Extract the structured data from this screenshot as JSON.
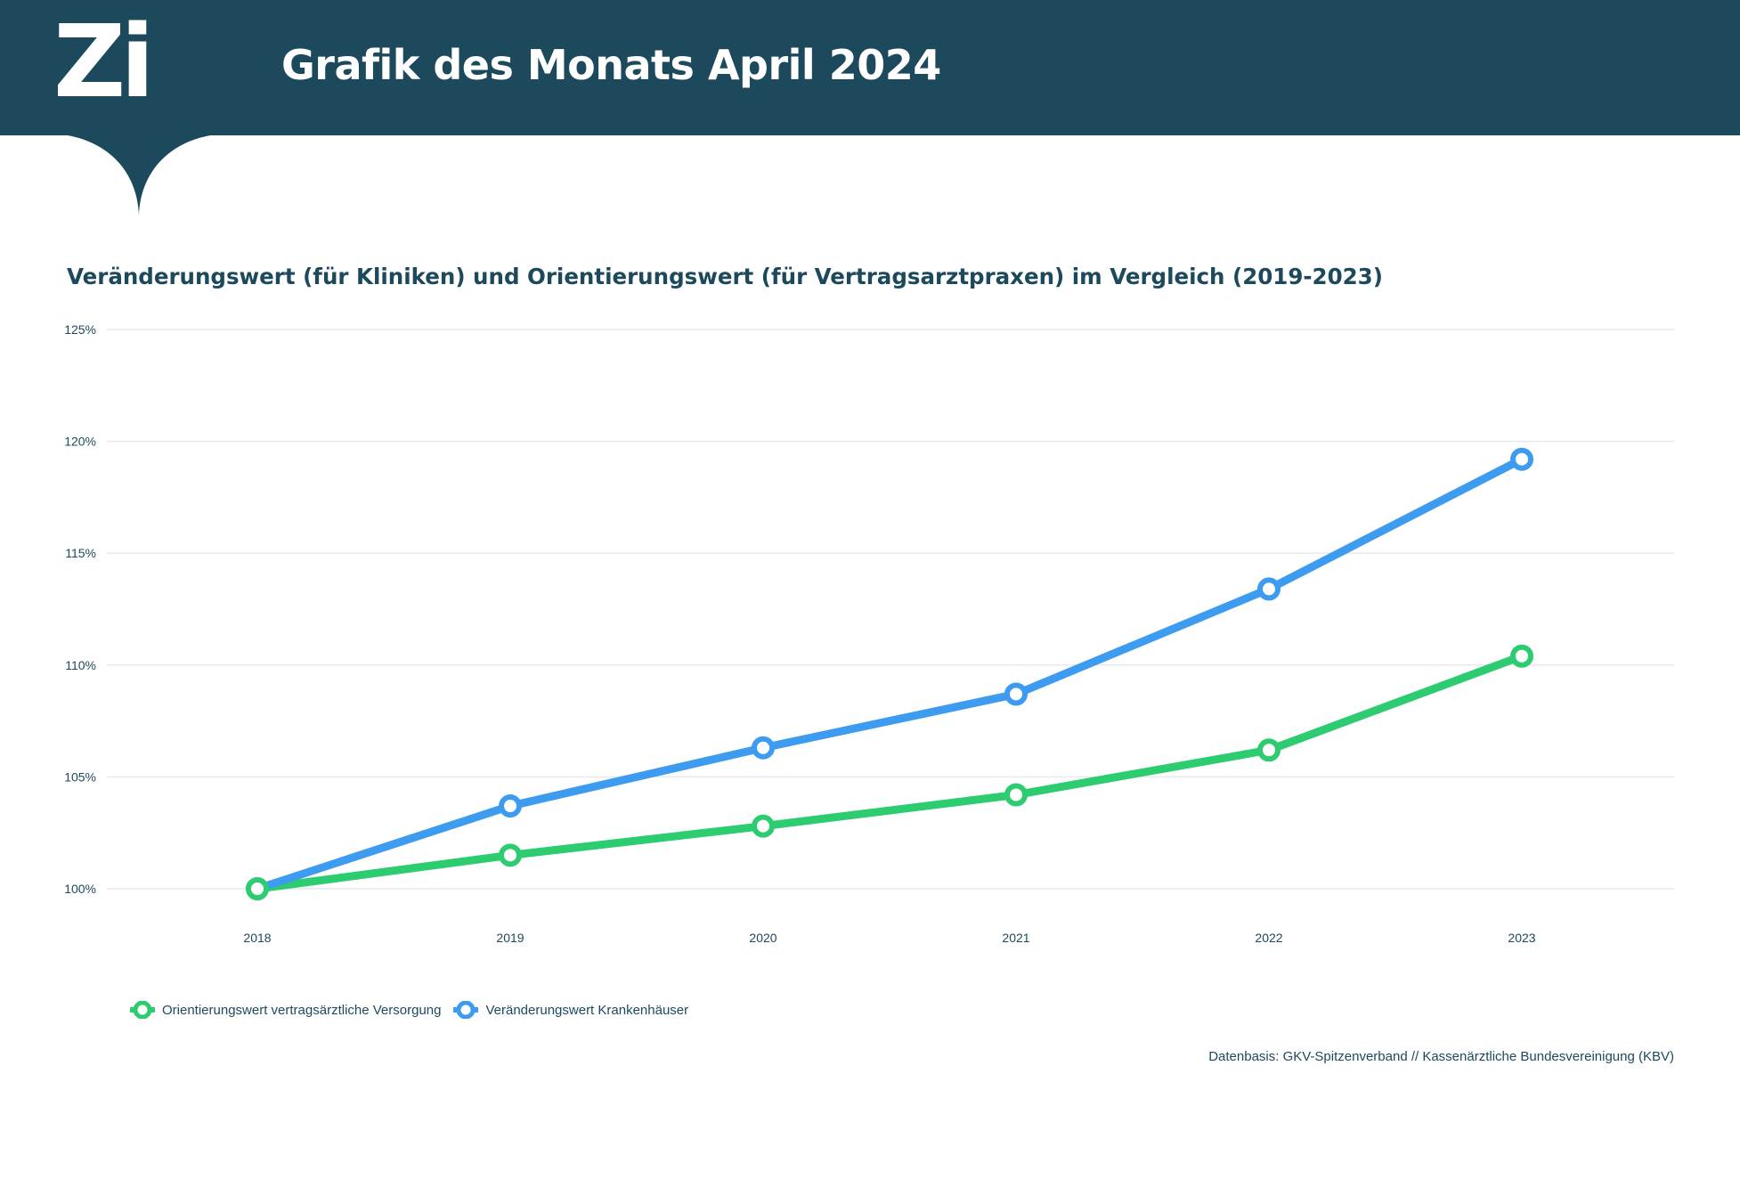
{
  "header": {
    "logo_text": "Zi",
    "title": "Grafik des Monats April 2024",
    "background_color": "#1c4a5c"
  },
  "source_note": "Datenbasis: GKV-Spitzenverband // Kassenärztliche Bundesvereinigung (KBV)",
  "chart_data": {
    "type": "line",
    "title": "Veränderungswert (für Kliniken) und Orientierungswert (für Vertragsarztpraxen) im Vergleich (2019-2023)",
    "xlabel": "",
    "ylabel": "",
    "categories": [
      "2018",
      "2019",
      "2020",
      "2021",
      "2022",
      "2023"
    ],
    "ylim": [
      100,
      125
    ],
    "yticks": [
      100,
      105,
      110,
      115,
      120,
      125
    ],
    "ytick_labels": [
      "100%",
      "105%",
      "110%",
      "115%",
      "120%",
      "125%"
    ],
    "grid": true,
    "legend_position": "bottom-left",
    "series": [
      {
        "name": "Orientierungswert vertragsärztliche Versorgung",
        "color": "#2ecc71",
        "values": [
          100.0,
          101.5,
          102.8,
          104.2,
          106.2,
          110.4
        ]
      },
      {
        "name": "Veränderungswert Krankenhäuser",
        "color": "#3d9bf0",
        "values": [
          100.0,
          103.7,
          106.3,
          108.7,
          113.4,
          119.2
        ]
      }
    ]
  }
}
